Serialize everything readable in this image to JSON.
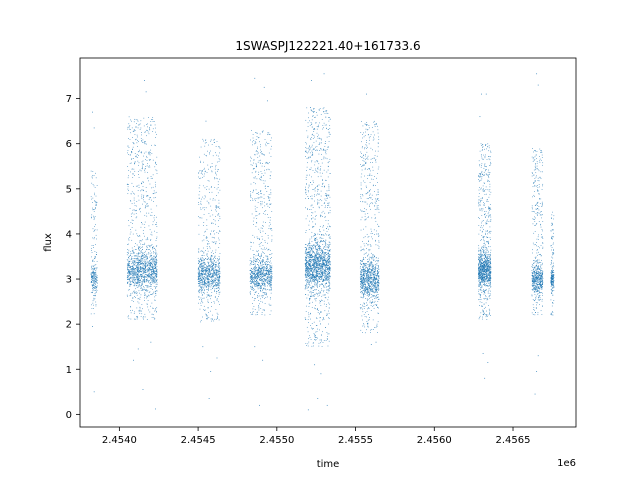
{
  "chart_data": {
    "type": "scatter",
    "title": "1SWASPJ122221.40+161733.6",
    "xlabel": "time",
    "ylabel": "flux",
    "x_offset_label": "1e6",
    "xlim": [
      2.45375,
      2.4569
    ],
    "ylim": [
      -0.28,
      7.9
    ],
    "grid": false,
    "legend": "none",
    "marker_color": "#1f77b4",
    "x_ticks": [
      {
        "value": 2.454,
        "label": "2.4540"
      },
      {
        "value": 2.4545,
        "label": "2.4545"
      },
      {
        "value": 2.455,
        "label": "2.4550"
      },
      {
        "value": 2.4555,
        "label": "2.4555"
      },
      {
        "value": 2.456,
        "label": "2.4560"
      },
      {
        "value": 2.4565,
        "label": "2.4565"
      }
    ],
    "y_ticks": [
      {
        "value": 0,
        "label": "0"
      },
      {
        "value": 1,
        "label": "1"
      },
      {
        "value": 2,
        "label": "2"
      },
      {
        "value": 3,
        "label": "3"
      },
      {
        "value": 4,
        "label": "4"
      },
      {
        "value": 5,
        "label": "5"
      },
      {
        "value": 6,
        "label": "6"
      },
      {
        "value": 7,
        "label": "7"
      }
    ],
    "clusters": [
      {
        "x_start": 2.45382,
        "x_end": 2.45386,
        "y_low": 2.2,
        "y_high": 5.4,
        "y_center": 3.0,
        "count": 260,
        "outliers": [
          [
            2.45383,
            6.7
          ],
          [
            2.45384,
            6.35
          ],
          [
            2.45384,
            0.5
          ],
          [
            2.45383,
            1.95
          ]
        ]
      },
      {
        "x_start": 2.45405,
        "x_end": 2.45424,
        "y_low": 2.1,
        "y_high": 6.6,
        "y_center": 3.2,
        "count": 1500,
        "outliers": [
          [
            2.45416,
            7.4
          ],
          [
            2.45417,
            7.15
          ],
          [
            2.45415,
            0.55
          ],
          [
            2.45423,
            0.12
          ],
          [
            2.45412,
            1.45
          ],
          [
            2.45409,
            1.2
          ],
          [
            2.4542,
            1.6
          ]
        ]
      },
      {
        "x_start": 2.4545,
        "x_end": 2.45464,
        "y_low": 2.0,
        "y_high": 6.1,
        "y_center": 3.1,
        "count": 1000,
        "outliers": [
          [
            2.45455,
            6.5
          ],
          [
            2.45457,
            0.35
          ],
          [
            2.45458,
            0.95
          ],
          [
            2.45462,
            1.25
          ],
          [
            2.45453,
            1.5
          ]
        ]
      },
      {
        "x_start": 2.45483,
        "x_end": 2.45497,
        "y_low": 2.2,
        "y_high": 6.3,
        "y_center": 3.1,
        "count": 1000,
        "outliers": [
          [
            2.45486,
            7.45
          ],
          [
            2.45492,
            7.25
          ],
          [
            2.45494,
            6.95
          ],
          [
            2.45489,
            0.2
          ],
          [
            2.45491,
            1.2
          ],
          [
            2.45486,
            1.5
          ]
        ]
      },
      {
        "x_start": 2.45518,
        "x_end": 2.45534,
        "y_low": 1.5,
        "y_high": 6.8,
        "y_center": 3.3,
        "count": 1900,
        "outliers": [
          [
            2.45522,
            7.4
          ],
          [
            2.4553,
            7.55
          ],
          [
            2.45526,
            0.35
          ],
          [
            2.4552,
            0.1
          ],
          [
            2.45532,
            0.2
          ],
          [
            2.45528,
            0.9
          ],
          [
            2.45524,
            1.1
          ]
        ]
      },
      {
        "x_start": 2.45553,
        "x_end": 2.45565,
        "y_low": 1.8,
        "y_high": 6.5,
        "y_center": 3.0,
        "count": 1100,
        "outliers": [
          [
            2.45557,
            7.1
          ],
          [
            2.45563,
            1.6
          ],
          [
            2.4556,
            1.55
          ]
        ]
      },
      {
        "x_start": 2.45628,
        "x_end": 2.45636,
        "y_low": 2.1,
        "y_high": 6.0,
        "y_center": 3.2,
        "count": 1100,
        "outliers": [
          [
            2.4563,
            7.1
          ],
          [
            2.45633,
            7.1
          ],
          [
            2.45632,
            0.8
          ],
          [
            2.45634,
            1.15
          ],
          [
            2.45631,
            1.35
          ],
          [
            2.45629,
            6.6
          ]
        ]
      },
      {
        "x_start": 2.45662,
        "x_end": 2.45669,
        "y_low": 2.2,
        "y_high": 5.9,
        "y_center": 3.0,
        "count": 650,
        "outliers": [
          [
            2.45665,
            7.55
          ],
          [
            2.45666,
            7.3
          ],
          [
            2.45664,
            0.45
          ],
          [
            2.45665,
            0.95
          ],
          [
            2.45666,
            1.3
          ]
        ]
      },
      {
        "x_start": 2.45674,
        "x_end": 2.45676,
        "y_low": 2.2,
        "y_high": 4.5,
        "y_center": 3.0,
        "count": 220,
        "outliers": []
      }
    ]
  }
}
